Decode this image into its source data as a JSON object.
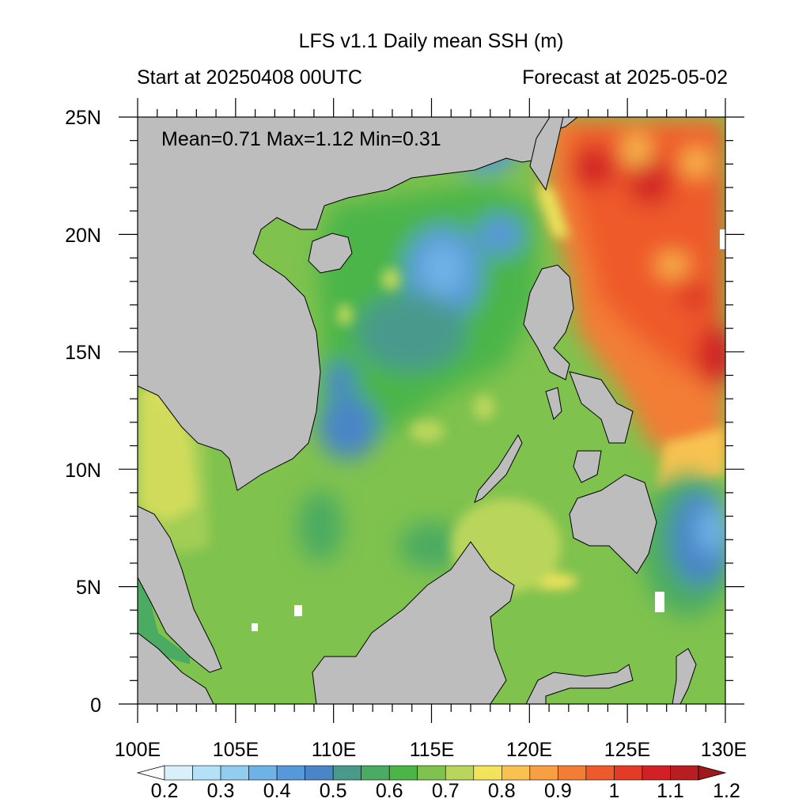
{
  "title": "LFS v1.1 Daily mean SSH (m)",
  "subtitle_left": "Start at 20250408 00UTC",
  "subtitle_right": "Forecast at 2025-05-02",
  "stats": "Mean=0.71  Max=1.12  Min=0.31",
  "map": {
    "lon_range": [
      100,
      130
    ],
    "lat_range": [
      0,
      25
    ],
    "lon_ticks": [
      "100E",
      "105E",
      "110E",
      "115E",
      "120E",
      "125E",
      "130E"
    ],
    "lat_ticks": [
      "25N",
      "20N",
      "15N",
      "10N",
      "5N",
      "0"
    ],
    "land_color": "#bdbdbd",
    "variable": "Sea surface height",
    "units": "m"
  },
  "colorbar": {
    "labels": [
      "0.2",
      "0.3",
      "0.4",
      "0.5",
      "0.6",
      "0.7",
      "0.8",
      "0.9",
      "1",
      "1.1",
      "1.2"
    ],
    "colors": [
      "#ffffff",
      "#d9f0fb",
      "#b5e1f7",
      "#92cdf0",
      "#6eb2e6",
      "#5698d9",
      "#4a85c7",
      "#4a9a8c",
      "#4bab62",
      "#4bb548",
      "#7fc24e",
      "#b9d55c",
      "#f2e35b",
      "#f8c251",
      "#f6a043",
      "#f37d35",
      "#ee5a2b",
      "#e43b27",
      "#d22026",
      "#b81d22",
      "#a0181c"
    ]
  }
}
